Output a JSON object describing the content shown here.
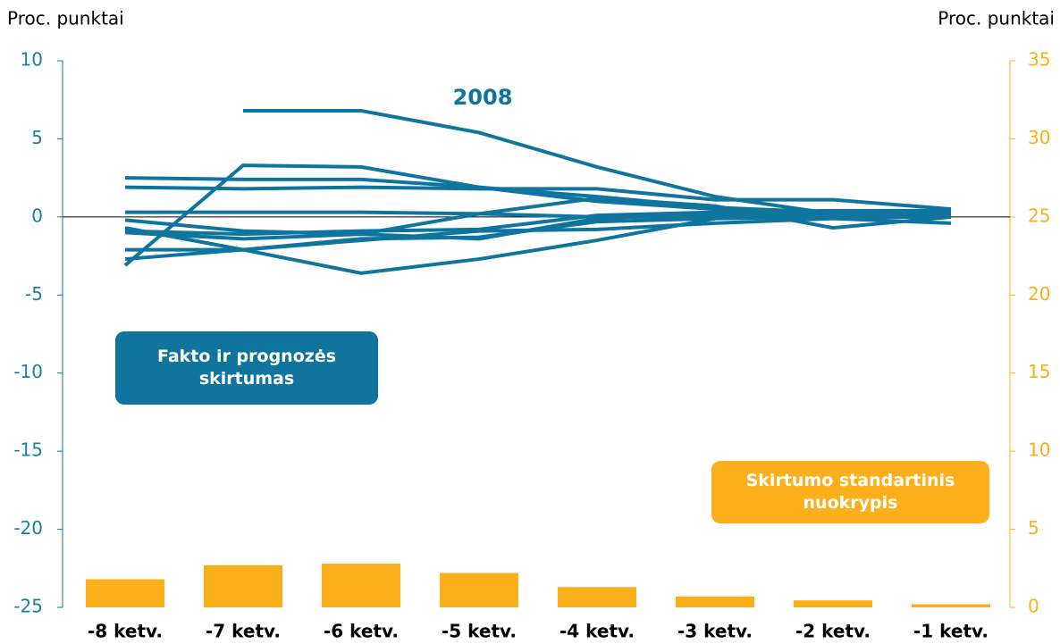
{
  "chart_data": {
    "type": "line_bar",
    "ylabel": "Proc. punktai",
    "y2label": "Proc. punktai",
    "categories": [
      "-8 ketv.",
      "-7 ketv.",
      "-6 ketv.",
      "-5 ketv.",
      "-4 ketv.",
      "-3 ketv.",
      "-2 ketv.",
      "-1 ketv."
    ],
    "ylim": [
      -25,
      10
    ],
    "yticks": [
      10,
      5,
      0,
      -5,
      -10,
      -15,
      -20,
      -25
    ],
    "y2lim": [
      0,
      35
    ],
    "y2ticks": [
      35,
      30,
      25,
      20,
      15,
      10,
      5,
      0
    ],
    "line_color": "#10759e",
    "series": [
      {
        "name": "2008",
        "values": [
          null,
          6.8,
          6.8,
          5.4,
          3.2,
          1.3,
          0.2,
          0
        ]
      },
      {
        "values": [
          -3.1,
          3.3,
          3.2,
          1.9,
          1.0,
          0.5,
          0.2,
          0.1
        ]
      },
      {
        "values": [
          2.5,
          2.4,
          2.4,
          1.9,
          1.3,
          0.6,
          0.3,
          0.2
        ]
      },
      {
        "values": [
          1.9,
          1.8,
          1.9,
          1.8,
          1.8,
          1.1,
          1.1,
          0.5
        ]
      },
      {
        "values": [
          0.3,
          0.3,
          0.3,
          0.2,
          0,
          0,
          0,
          0
        ]
      },
      {
        "values": [
          -0.2,
          -0.9,
          -1.1,
          0.2,
          1.2,
          0.7,
          -0.7,
          0
        ]
      },
      {
        "values": [
          -0.7,
          -2.1,
          -3.6,
          -2.7,
          -1.5,
          -0.1,
          0.2,
          0.2
        ]
      },
      {
        "values": [
          -1.0,
          -1.4,
          -1.1,
          -1.4,
          -0.1,
          0.2,
          0.2,
          0.2
        ]
      },
      {
        "values": [
          -2.1,
          -2.1,
          -1.4,
          -1.3,
          -0.3,
          -0.1,
          0,
          0
        ]
      },
      {
        "values": [
          -2.7,
          -2.1,
          -1.5,
          -0.9,
          -0.8,
          -0.4,
          -0.1,
          -0.4
        ]
      },
      {
        "values": [
          -0.9,
          -1.1,
          -0.9,
          -0.8,
          0.1,
          0.3,
          0.4,
          0.4
        ]
      }
    ],
    "bar_series": {
      "name": "Skirtumo standartinis nuokrypis",
      "color": "#fbb01b",
      "axis": "y2",
      "values": [
        1.8,
        2.7,
        2.8,
        2.2,
        1.3,
        0.7,
        0.45,
        0.2
      ]
    },
    "line_group_label": "Fakto ir prognozės skirtumas"
  }
}
